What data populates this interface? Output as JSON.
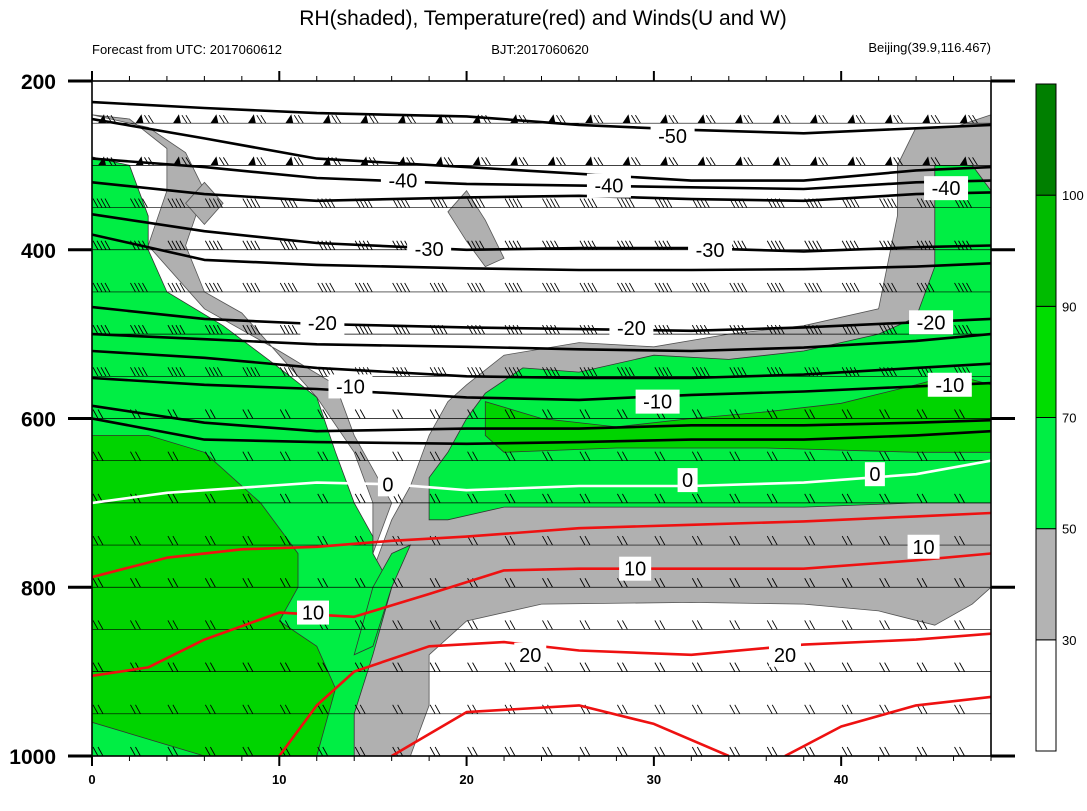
{
  "chart_data": {
    "type": "contour",
    "title": "RH(shaded), Temperature(red) and Winds(U and W)",
    "left_string": "Forecast from UTC: 2017060612",
    "center_string": "BJT:2017060620",
    "right_string": "Beijing(39.9,116.467)",
    "x_ticks": [
      0,
      10,
      20,
      30,
      40
    ],
    "xlim": [
      0,
      48
    ],
    "y_ticks": [
      200,
      400,
      600,
      800,
      1000
    ],
    "ylim": [
      200,
      1000
    ],
    "y_reversed": true,
    "wind_levels": [
      250,
      300,
      350,
      400,
      450,
      500,
      550,
      600,
      650,
      700,
      750,
      800,
      850,
      900,
      950,
      1000
    ],
    "wind_columns": [
      0,
      2,
      4,
      6,
      8,
      10,
      12,
      14,
      16,
      18,
      20,
      22,
      24,
      26,
      28,
      30,
      32,
      34,
      36,
      38,
      40,
      42,
      44,
      46
    ],
    "colorbar": {
      "levels": [
        30,
        50,
        70,
        90,
        100
      ],
      "colors": [
        "#ffffff",
        "#b3b3b3",
        "#00ee44",
        "#00dd00",
        "#00bb00",
        "#007f00"
      ]
    },
    "fill_colors": {
      "gray": "#b0b0b0",
      "green_light": "#00ee44",
      "green_mid": "#00d400"
    },
    "line_colors": {
      "cold": "#000000",
      "zero": "#ffffff",
      "warm": "#ee1111"
    },
    "temperature_contours": [
      {
        "value": -50,
        "label": "-50",
        "label_at": [
          31,
          265
        ],
        "points": [
          [
            0,
            225
          ],
          [
            6,
            232
          ],
          [
            12,
            238
          ],
          [
            20,
            242
          ],
          [
            26,
            252
          ],
          [
            32,
            258
          ],
          [
            38,
            262
          ],
          [
            44,
            256
          ],
          [
            48,
            252
          ]
        ]
      },
      {
        "value": -40,
        "label": "-40",
        "label_at": [
          16.6,
          318
        ],
        "points": [
          [
            0,
            245
          ],
          [
            6,
            268
          ],
          [
            12,
            292
          ],
          [
            20,
            302
          ],
          [
            26,
            310
          ],
          [
            32,
            318
          ],
          [
            38,
            318
          ],
          [
            44,
            306
          ],
          [
            48,
            302
          ]
        ]
      },
      {
        "value": -40,
        "label": "-40",
        "label_at": [
          27.6,
          324
        ],
        "points": [
          [
            0,
            292
          ],
          [
            6,
            302
          ],
          [
            12,
            315
          ],
          [
            20,
            322
          ],
          [
            26,
            324
          ],
          [
            32,
            326
          ],
          [
            38,
            328
          ],
          [
            44,
            320
          ],
          [
            48,
            318
          ]
        ]
      },
      {
        "value": -40,
        "label": "-40",
        "label_at": [
          45.6,
          327
        ],
        "points": [
          [
            0,
            320
          ],
          [
            6,
            334
          ],
          [
            12,
            342
          ],
          [
            20,
            338
          ],
          [
            26,
            336
          ],
          [
            32,
            340
          ],
          [
            38,
            342
          ],
          [
            44,
            334
          ],
          [
            48,
            332
          ]
        ]
      },
      {
        "value": -30,
        "label": "-30",
        "label_at": [
          18,
          399
        ],
        "points": [
          [
            0,
            358
          ],
          [
            6,
            378
          ],
          [
            12,
            392
          ],
          [
            20,
            400
          ],
          [
            26,
            398
          ],
          [
            32,
            398
          ],
          [
            38,
            402
          ],
          [
            44,
            397
          ],
          [
            48,
            395
          ]
        ]
      },
      {
        "value": -30,
        "label": "-30",
        "label_at": [
          33,
          400
        ],
        "points": [
          [
            0,
            382
          ],
          [
            6,
            412
          ],
          [
            12,
            418
          ],
          [
            20,
            422
          ],
          [
            26,
            424
          ],
          [
            32,
            424
          ],
          [
            38,
            423
          ],
          [
            44,
            420
          ],
          [
            48,
            416
          ]
        ]
      },
      {
        "value": -20,
        "label": "-20",
        "label_at": [
          12.3,
          487
        ],
        "points": [
          [
            0,
            468
          ],
          [
            6,
            482
          ],
          [
            12,
            488
          ],
          [
            20,
            492
          ],
          [
            26,
            494
          ],
          [
            32,
            496
          ],
          [
            38,
            492
          ],
          [
            44,
            486
          ],
          [
            48,
            482
          ]
        ]
      },
      {
        "value": -20,
        "label": "-20",
        "label_at": [
          28.8,
          493
        ],
        "points": [
          [
            0,
            500
          ],
          [
            6,
            506
          ],
          [
            12,
            512
          ],
          [
            20,
            515
          ],
          [
            26,
            518
          ],
          [
            32,
            520
          ],
          [
            38,
            516
          ],
          [
            44,
            508
          ],
          [
            48,
            500
          ]
        ]
      },
      {
        "value": -20,
        "label": "-20",
        "label_at": [
          44.8,
          486
        ],
        "points": [
          [
            0,
            520
          ],
          [
            6,
            528
          ],
          [
            12,
            540
          ],
          [
            20,
            550
          ],
          [
            26,
            552
          ],
          [
            32,
            552
          ],
          [
            38,
            548
          ],
          [
            44,
            540
          ],
          [
            48,
            535
          ]
        ]
      },
      {
        "value": -10,
        "label": "-10",
        "label_at": [
          13.8,
          562
        ],
        "points": [
          [
            0,
            552
          ],
          [
            6,
            560
          ],
          [
            12,
            565
          ],
          [
            20,
            575
          ],
          [
            26,
            578
          ],
          [
            32,
            572
          ],
          [
            38,
            568
          ],
          [
            44,
            562
          ],
          [
            48,
            558
          ]
        ]
      },
      {
        "value": -10,
        "label": "-10",
        "label_at": [
          30.2,
          580
        ],
        "points": [
          [
            0,
            585
          ],
          [
            6,
            605
          ],
          [
            12,
            615
          ],
          [
            20,
            612
          ],
          [
            26,
            612
          ],
          [
            32,
            608
          ],
          [
            38,
            608
          ],
          [
            44,
            605
          ],
          [
            48,
            602
          ]
        ]
      },
      {
        "value": -10,
        "label": "-10",
        "label_at": [
          45.8,
          560
        ],
        "points": [
          [
            0,
            600
          ],
          [
            6,
            625
          ],
          [
            12,
            628
          ],
          [
            20,
            630
          ],
          [
            26,
            628
          ],
          [
            32,
            625
          ],
          [
            38,
            625
          ],
          [
            44,
            620
          ],
          [
            48,
            615
          ]
        ]
      },
      {
        "value": 0,
        "label": "0",
        "label_at": [
          15.8,
          678
        ],
        "points": [
          [
            0,
            700
          ],
          [
            4,
            688
          ],
          [
            8,
            682
          ],
          [
            12,
            676
          ],
          [
            16,
            678
          ],
          [
            20,
            685
          ],
          [
            26,
            680
          ],
          [
            32,
            680
          ],
          [
            38,
            676
          ],
          [
            44,
            666
          ],
          [
            48,
            650
          ]
        ]
      },
      {
        "value": 0,
        "label": "0",
        "label_at": [
          31.8,
          673
        ]
      },
      {
        "value": 0,
        "label": "0",
        "label_at": [
          41.8,
          666
        ]
      },
      {
        "value": 10,
        "label": "10",
        "label_at": [
          11.8,
          830
        ],
        "points": [
          [
            0,
            788
          ],
          [
            4,
            765
          ],
          [
            8,
            755
          ],
          [
            12,
            752
          ],
          [
            16,
            745
          ],
          [
            20,
            740
          ],
          [
            26,
            730
          ],
          [
            32,
            726
          ],
          [
            38,
            722
          ],
          [
            44,
            716
          ],
          [
            48,
            712
          ]
        ]
      },
      {
        "value": 10,
        "label": "10",
        "label_at": [
          29,
          778
        ],
        "points": [
          [
            0,
            905
          ],
          [
            3,
            895
          ],
          [
            6,
            862
          ],
          [
            10,
            830
          ],
          [
            14,
            835
          ],
          [
            18,
            808
          ],
          [
            22,
            780
          ],
          [
            26,
            778
          ],
          [
            32,
            778
          ],
          [
            38,
            778
          ],
          [
            44,
            768
          ],
          [
            48,
            760
          ]
        ]
      },
      {
        "value": 10,
        "label": "10",
        "label_at": [
          44.4,
          752
        ]
      },
      {
        "value": 20,
        "label": "20",
        "label_at": [
          23.4,
          880
        ],
        "points": [
          [
            10,
            1000
          ],
          [
            12,
            940
          ],
          [
            14,
            900
          ],
          [
            18,
            870
          ],
          [
            22,
            865
          ],
          [
            26,
            875
          ],
          [
            32,
            880
          ],
          [
            38,
            868
          ],
          [
            44,
            862
          ],
          [
            48,
            855
          ]
        ]
      },
      {
        "value": 20,
        "label": "20",
        "label_at": [
          37,
          880
        ]
      },
      {
        "value": 30,
        "label": "",
        "points": [
          [
            16,
            1000
          ],
          [
            20,
            948
          ],
          [
            26,
            940
          ],
          [
            30,
            962
          ],
          [
            34,
            1000
          ]
        ]
      },
      {
        "value": 30,
        "label": "",
        "points": [
          [
            37,
            1000
          ],
          [
            40,
            965
          ],
          [
            44,
            940
          ],
          [
            48,
            930
          ]
        ]
      }
    ]
  }
}
